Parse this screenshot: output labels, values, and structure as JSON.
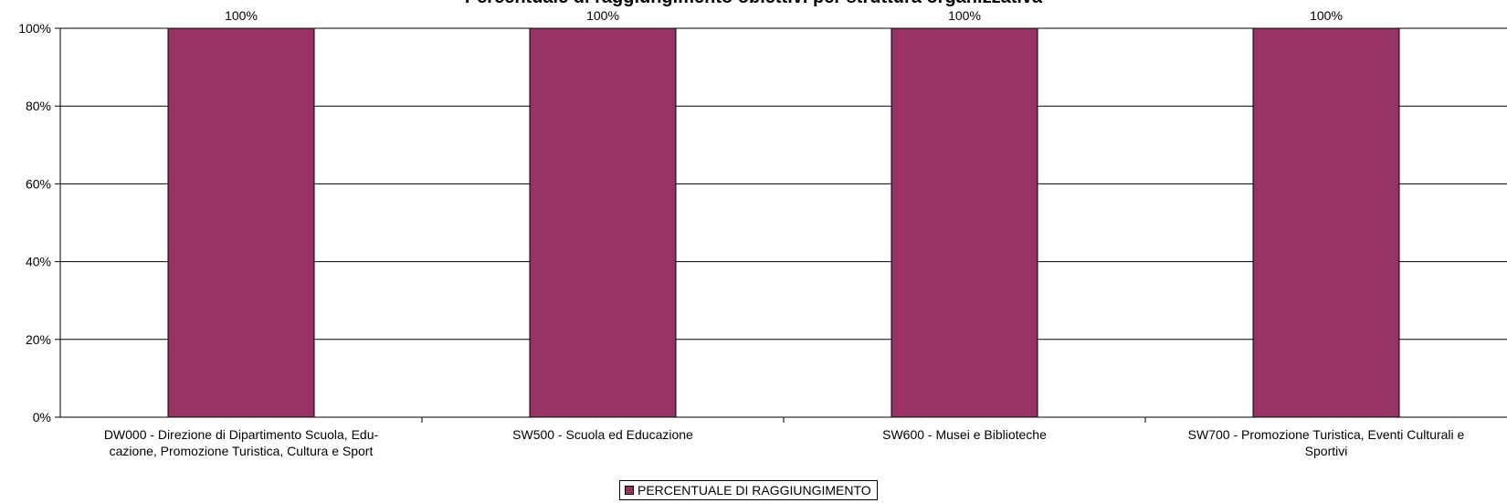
{
  "chart_data": {
    "type": "bar",
    "title": "Percentuale di raggiungimento obiettivi per struttura organizzativa",
    "categories": [
      "DW000 - Direzione di Dipartimento Scuola, Edu-\ncazione, Promozione Turistica, Cultura e Sport",
      "SW500 - Scuola ed Educazione",
      "SW600 - Musei e Biblioteche",
      "SW700 - Promozione Turistica, Eventi Culturali e\nSportivi"
    ],
    "series": [
      {
        "name": "PERCENTUALE DI RAGGIUNGIMENTO",
        "values": [
          100,
          100,
          100,
          100
        ],
        "color": "#993366"
      }
    ],
    "data_labels": [
      "100%",
      "100%",
      "100%",
      "100%"
    ],
    "y_ticks": [
      "0%",
      "20%",
      "40%",
      "60%",
      "80%",
      "100%"
    ],
    "ylim": [
      0,
      100
    ],
    "grid": true,
    "legend_position": "bottom-center",
    "xlabel": "",
    "ylabel": ""
  },
  "legend": {
    "label": "PERCENTUALE DI RAGGIUNGIMENTO"
  }
}
